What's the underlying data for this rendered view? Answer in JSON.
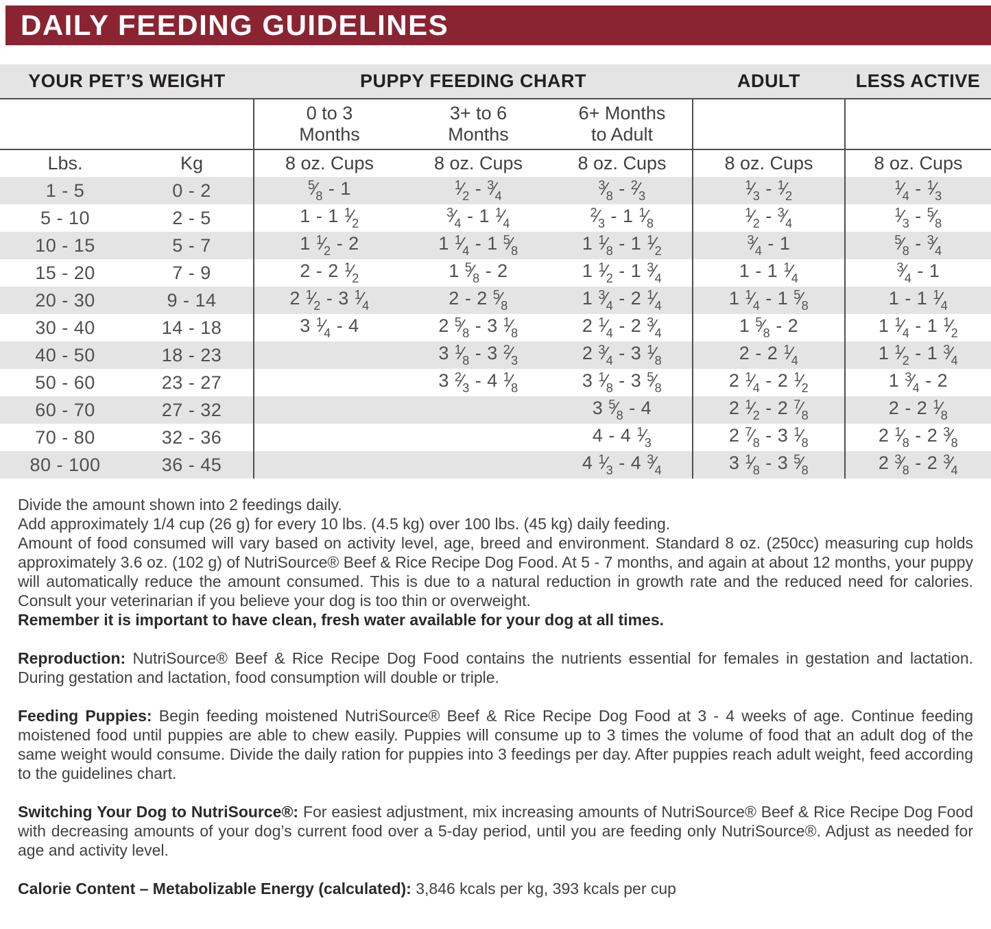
{
  "title": "DAILY FEEDING GUIDELINES",
  "table": {
    "group_headers": [
      {
        "label": "YOUR PET’S WEIGHT",
        "span": 2
      },
      {
        "label": "PUPPY FEEDING CHART",
        "span": 3
      },
      {
        "label": "ADULT",
        "span": 1
      },
      {
        "label": "LESS ACTIVE",
        "span": 1
      }
    ],
    "age_headers": {
      "puppy_0_3": "0 to 3\nMonths",
      "puppy_3_6": "3+ to 6\nMonths",
      "puppy_6_adult": "6+ Months\nto Adult"
    },
    "unit_headers": [
      "Lbs.",
      "Kg",
      "8 oz. Cups",
      "8 oz. Cups",
      "8 oz. Cups",
      "8 oz. Cups",
      "8 oz. Cups"
    ],
    "rows": [
      [
        "1 - 5",
        "0 - 2",
        "5/8 - 1",
        "1/2 - 3/4",
        "3/8 - 2/3",
        "1/3 - 1/2",
        "1/4 - 1/3"
      ],
      [
        "5 - 10",
        "2 - 5",
        "1 - 1 1/2",
        "3/4 - 1 1/4",
        "2/3 - 1 1/8",
        "1/2 - 3/4",
        "1/3 - 5/8"
      ],
      [
        "10 - 15",
        "5 - 7",
        "1 1/2 - 2",
        "1 1/4 - 1 5/8",
        "1 1/8 - 1 1/2",
        "3/4 - 1",
        "5/8 - 3/4"
      ],
      [
        "15 - 20",
        "7 - 9",
        "2 - 2 1/2",
        "1 5/8 - 2",
        "1 1/2 - 1 3/4",
        "1 - 1 1/4",
        "3/4 - 1"
      ],
      [
        "20 - 30",
        "9 - 14",
        "2 1/2 - 3 1/4",
        "2 - 2 5/8",
        "1 3/4 - 2 1/4",
        "1 1/4 - 1 5/8",
        "1 - 1 1/4"
      ],
      [
        "30 - 40",
        "14 - 18",
        "3 1/4 - 4",
        "2 5/8 - 3 1/8",
        "2 1/4 - 2 3/4",
        "1 5/8 - 2",
        "1 1/4 - 1 1/2"
      ],
      [
        "40 - 50",
        "18 - 23",
        "",
        "3 1/8 - 3 2/3",
        "2 3/4 - 3 1/8",
        "2 - 2 1/4",
        "1 1/2 - 1 3/4"
      ],
      [
        "50 - 60",
        "23 - 27",
        "",
        "3 2/3 - 4 1/8",
        "3 1/8 - 3 5/8",
        "2 1/4 - 2 1/2",
        "1 3/4 - 2"
      ],
      [
        "60 - 70",
        "27 - 32",
        "",
        "",
        "3 5/8 - 4",
        "2 1/2 - 2 7/8",
        "2 - 2 1/8"
      ],
      [
        "70 - 80",
        "32 - 36",
        "",
        "",
        "4 - 4 1/3",
        "2 7/8 - 3 1/8",
        "2 1/8 - 2 3/8"
      ],
      [
        "80 - 100",
        "36 - 45",
        "",
        "",
        "4 1/3 - 4 3/4",
        "3 1/8 - 3 5/8",
        "2 3/8 - 2 3/4"
      ]
    ]
  },
  "notes": {
    "line1": "Divide the amount shown into 2 feedings daily.",
    "line2": "Add approximately 1/4 cup (26 g) for every 10 lbs. (4.5 kg) over 100 lbs. (45 kg) daily feeding.",
    "para": "Amount of food consumed will vary based on activity level, age, breed and environment. Standard 8 oz. (250cc) measuring cup holds approximately 3.6 oz. (102 g)  of NutriSource® Beef & Rice Recipe Dog Food. At 5 - 7 months, and again at about 12 months, your puppy will automatically reduce the amount consumed. This is due to a natural reduction in growth rate and the reduced need for calories. Consult your veterinarian if you believe your dog is too thin or overweight.",
    "bold_reminder": "Remember it is important to have clean, fresh water available for your dog at all times."
  },
  "sections": [
    {
      "heading": "Reproduction:",
      "text": " NutriSource® Beef & Rice Recipe Dog Food contains the nutrients essential for females in gestation and lactation. During gestation and lactation, food consumption will double or triple."
    },
    {
      "heading": "Feeding Puppies:",
      "text": " Begin feeding moistened NutriSource® Beef & Rice Recipe Dog Food at 3 - 4 weeks of age. Continue feeding moistened food until puppies are able to chew easily. Puppies will consume up to 3 times the volume of food that an adult dog of the same weight would consume. Divide the daily ration for puppies into 3 feedings per day. After puppies reach adult weight, feed according to the guidelines chart."
    },
    {
      "heading": "Switching Your Dog to NutriSource®:",
      "text": " For easiest adjustment, mix increasing amounts of NutriSource® Beef & Rice Recipe Dog Food with decreasing amounts of your dog’s current food over a 5-day period, until you are feeding only NutriSource®. Adjust as needed for age and activity level."
    },
    {
      "heading": "Calorie Content – Metabolizable Energy (calculated):",
      "text": " 3,846 kcals per kg, 393 kcals per cup"
    }
  ],
  "colors": {
    "banner_background": "#8a2433",
    "banner_text": "#ffffff",
    "row_stripe": "#e4e4e5",
    "rule_lines": "#4d4e50"
  }
}
